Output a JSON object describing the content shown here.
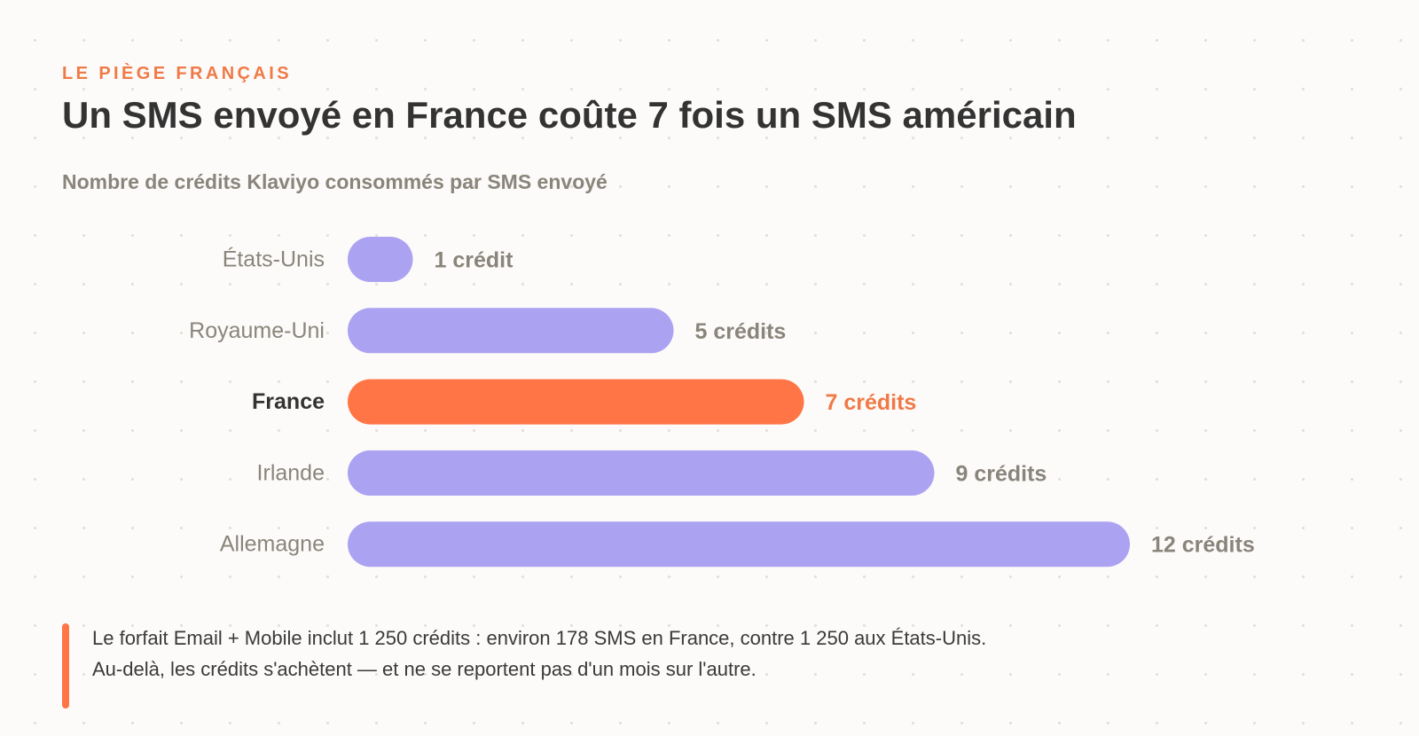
{
  "header": {
    "eyebrow": "LE PIÈGE FRANÇAIS",
    "title": "Un SMS envoyé en France coûte 7 fois un SMS américain",
    "subtitle": "Nombre de crédits Klaviyo consommés par SMS envoyé"
  },
  "chart_data": {
    "type": "bar",
    "orientation": "horizontal",
    "categories": [
      "États-Unis",
      "Royaume-Uni",
      "France",
      "Irlande",
      "Allemagne"
    ],
    "values": [
      1,
      5,
      7,
      9,
      12
    ],
    "value_labels": [
      "1 crédit",
      "5 crédits",
      "7 crédits",
      "9 crédits",
      "12 crédits"
    ],
    "highlight": "France",
    "xlim": [
      0,
      12
    ],
    "grid": false,
    "colors": {
      "default": "#aba2f2",
      "highlight": "#ff7545",
      "label_default": "#8a857b",
      "label_highlight_category": "#333333",
      "value_highlight": "#f07a47"
    }
  },
  "note": {
    "line1": "Le forfait Email + Mobile inclut 1 250 crédits : environ 178 SMS en France, contre 1 250 aux États-Unis.",
    "line2": "Au-delà, les crédits s'achètent — et ne se reportent pas d'un mois sur l'autre.",
    "accent_color": "#ff7545"
  }
}
